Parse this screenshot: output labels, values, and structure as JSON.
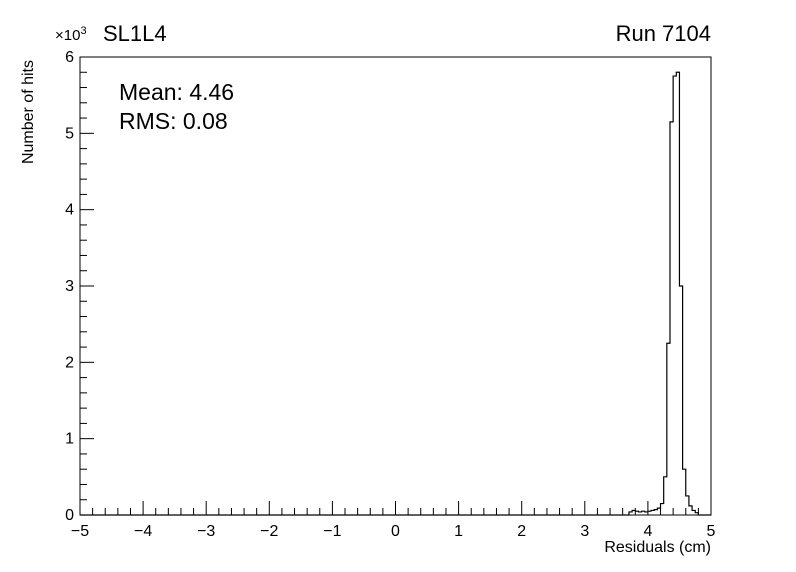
{
  "header": {
    "left_label": "SL1L4",
    "right_label": "Run 7104"
  },
  "stats": {
    "mean": "Mean: 4.46",
    "rms": "RMS:  0.08"
  },
  "axes": {
    "x_title": "Residuals (cm)",
    "y_title": "Number of hits",
    "y_scale_base": "×10",
    "y_scale_exp": "3"
  },
  "chart_data": {
    "type": "bar",
    "style": "step-histogram-outline",
    "title": "SL1L4",
    "subtitle": "Run 7104",
    "annotations": [
      "Mean: 4.46",
      "RMS: 0.08"
    ],
    "xlabel": "Residuals (cm)",
    "ylabel": "Number of hits",
    "xlim": [
      -5,
      5
    ],
    "ylim": [
      0,
      6000
    ],
    "y_axis_multiplier_label": "×10^3",
    "grid": false,
    "legend": "none",
    "x_major_tick_values": [
      -5,
      -4,
      -3,
      -2,
      -1,
      0,
      1,
      2,
      3,
      4,
      5
    ],
    "x_tick_labels": [
      "−5",
      "−4",
      "−3",
      "−2",
      "−1",
      "0",
      "1",
      "2",
      "3",
      "4",
      "5"
    ],
    "x_minor_tick_step": 0.2,
    "y_major_tick_values": [
      0,
      1000,
      2000,
      3000,
      4000,
      5000,
      6000
    ],
    "y_tick_labels": [
      "0",
      "1",
      "2",
      "3",
      "4",
      "5",
      "6"
    ],
    "y_minor_tick_step": 200,
    "bin_width": 0.05,
    "bins": [
      {
        "x_low": 3.7,
        "count": 40
      },
      {
        "x_low": 3.75,
        "count": 60
      },
      {
        "x_low": 3.8,
        "count": 50
      },
      {
        "x_low": 3.85,
        "count": 40
      },
      {
        "x_low": 3.9,
        "count": 50
      },
      {
        "x_low": 3.95,
        "count": 40
      },
      {
        "x_low": 4.0,
        "count": 50
      },
      {
        "x_low": 4.05,
        "count": 60
      },
      {
        "x_low": 4.1,
        "count": 70
      },
      {
        "x_low": 4.15,
        "count": 90
      },
      {
        "x_low": 4.2,
        "count": 150
      },
      {
        "x_low": 4.25,
        "count": 500
      },
      {
        "x_low": 4.3,
        "count": 2250
      },
      {
        "x_low": 4.35,
        "count": 5150
      },
      {
        "x_low": 4.4,
        "count": 5750
      },
      {
        "x_low": 4.45,
        "count": 5800
      },
      {
        "x_low": 4.5,
        "count": 3000
      },
      {
        "x_low": 4.55,
        "count": 600
      },
      {
        "x_low": 4.6,
        "count": 250
      },
      {
        "x_low": 4.65,
        "count": 120
      },
      {
        "x_low": 4.7,
        "count": 60
      },
      {
        "x_low": 4.75,
        "count": 30
      },
      {
        "x_low": 4.8,
        "count": 0
      }
    ]
  }
}
